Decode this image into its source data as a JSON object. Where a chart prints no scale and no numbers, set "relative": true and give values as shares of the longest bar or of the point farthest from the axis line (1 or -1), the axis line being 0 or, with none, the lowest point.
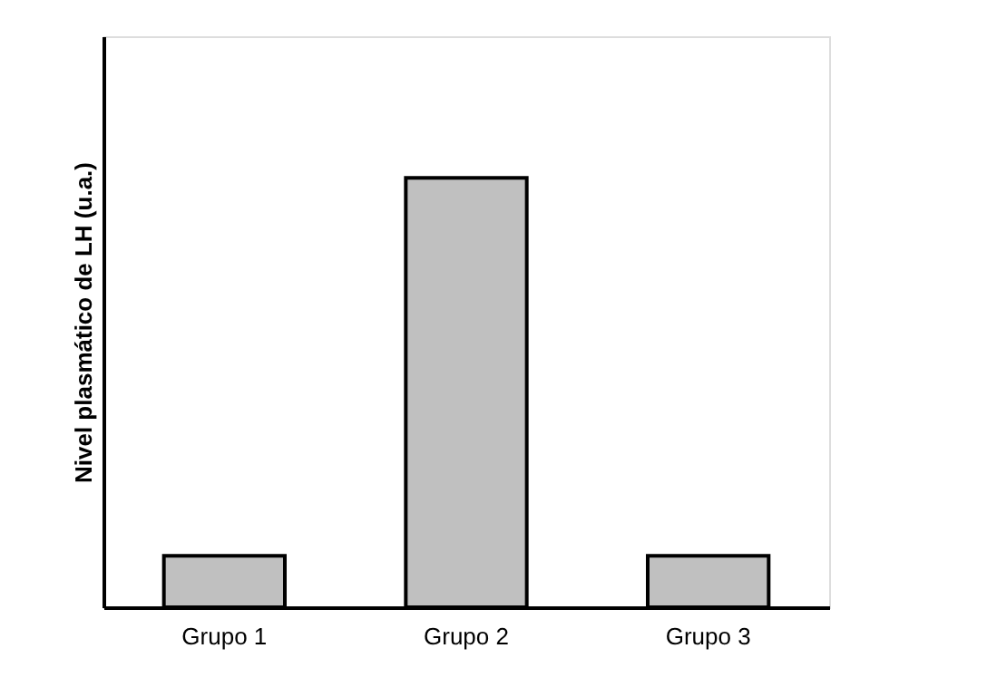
{
  "chart_data": {
    "type": "bar",
    "relative": true,
    "ylabel": "Nivel plasmático de LH (u.a.)",
    "categories": [
      "Grupo 1",
      "Grupo 2",
      "Grupo 3"
    ],
    "values": [
      0.12,
      1,
      0.12
    ],
    "color": "#c0c0c0",
    "grid": false
  }
}
